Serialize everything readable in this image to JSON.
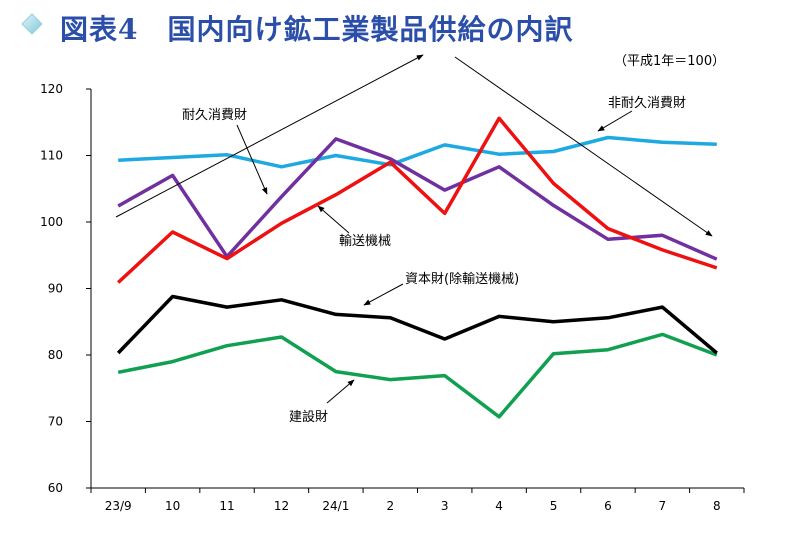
{
  "header": {
    "title": "図表4　国内向け鉱工業製品供給の内訳",
    "icon": "diamond-icon",
    "title_color": "#2b4fa8"
  },
  "unit_note": "（平成1年＝100）",
  "chart_data": {
    "type": "line",
    "categories": [
      "23/9",
      "10",
      "11",
      "12",
      "24/1",
      "2",
      "3",
      "4",
      "5",
      "6",
      "7",
      "8"
    ],
    "ylim": [
      60,
      120
    ],
    "yticks": [
      "60",
      "70",
      "80",
      "90",
      "100",
      "110",
      "120"
    ],
    "grid": false,
    "series": [
      {
        "name": "非耐久消費財",
        "color": "#1ea9e1",
        "values": [
          109.3,
          109.7,
          110.1,
          108.3,
          110.0,
          108.6,
          111.6,
          110.2,
          110.6,
          112.7,
          112.0,
          111.7
        ]
      },
      {
        "name": "耐久消費財",
        "color": "#7030a0",
        "values": [
          102.4,
          107.0,
          94.8,
          103.8,
          112.5,
          109.5,
          104.8,
          108.3,
          102.5,
          97.4,
          98.0,
          94.4
        ]
      },
      {
        "name": "輸送機械",
        "color": "#ee1111",
        "values": [
          90.9,
          98.5,
          94.5,
          99.8,
          104.1,
          109.0,
          101.3,
          115.6,
          105.8,
          99.0,
          95.8,
          93.1
        ]
      },
      {
        "name": "資本財(除輸送機械)",
        "color": "#000000",
        "values": [
          80.3,
          88.8,
          87.2,
          88.3,
          86.1,
          85.6,
          82.4,
          85.8,
          85.0,
          85.6,
          87.2,
          80.3
        ]
      },
      {
        "name": "建設財",
        "color": "#10a050",
        "values": [
          77.4,
          79.0,
          81.4,
          82.7,
          77.5,
          76.3,
          76.9,
          70.7,
          80.2,
          80.8,
          83.1,
          80.0
        ]
      }
    ],
    "annotations": [
      "耐久消費財",
      "非耐久消費財",
      "輸送機械",
      "資本財(除輸送機械)",
      "建設財"
    ]
  }
}
